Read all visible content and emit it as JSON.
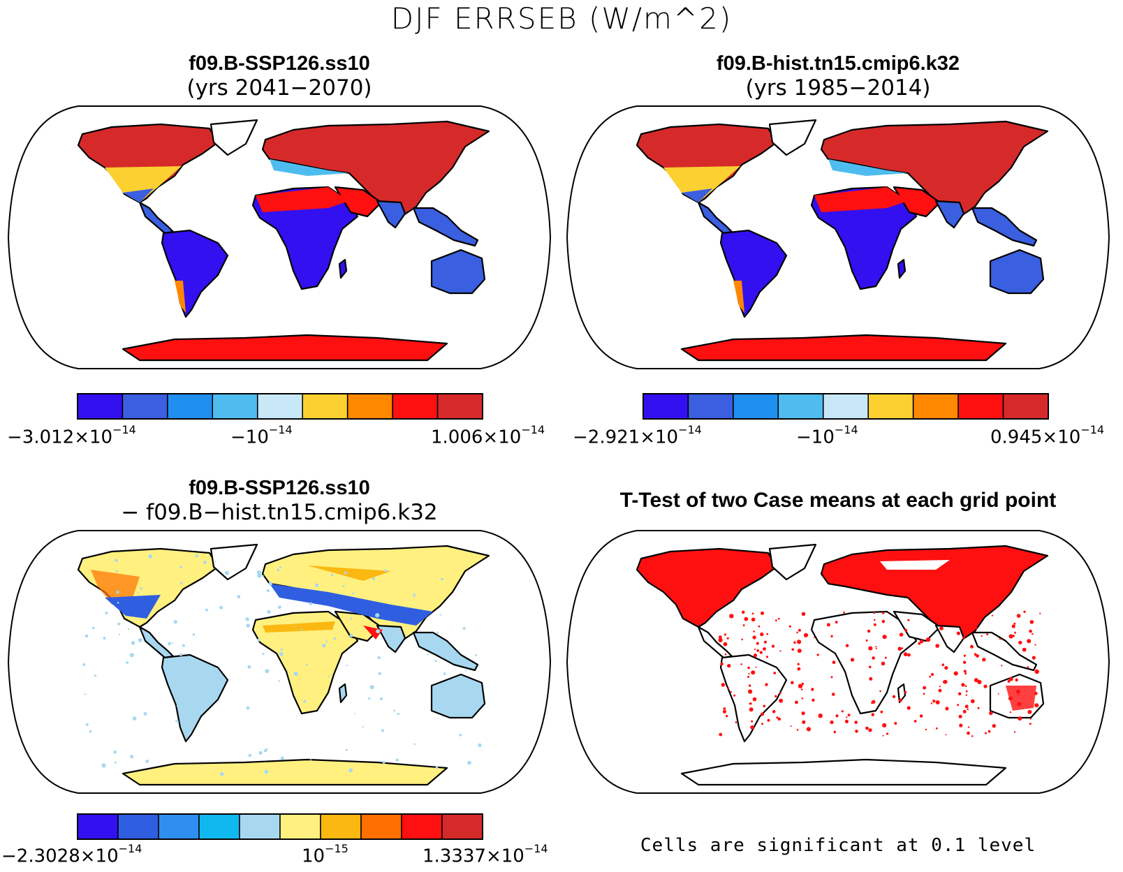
{
  "figure": {
    "title": "DJF ERRSEB (W/m^2)"
  },
  "panels": [
    {
      "id": "case1",
      "title": "f09.B-SSP126.ss10",
      "subtitle": "(yrs 2041−2070)",
      "colorbar": {
        "colors": [
          "#3310f0",
          "#3a5fe0",
          "#1f8ff0",
          "#4fbcf0",
          "#c8e8f8",
          "#fbd030",
          "#ff8800",
          "#ff1010",
          "#d62a2a"
        ],
        "labels": [
          {
            "mantissa": "−3.012×10",
            "exp": "−14"
          },
          {
            "mantissa": "−10",
            "exp": "−14"
          },
          {
            "mantissa": "1.006×10",
            "exp": "−14"
          }
        ]
      }
    },
    {
      "id": "case2",
      "title": "f09.B-hist.tn15.cmip6.k32",
      "subtitle": "(yrs 1985−2014)",
      "colorbar": {
        "colors": [
          "#3310f0",
          "#3a5fe0",
          "#1f8ff0",
          "#4fbcf0",
          "#c8e8f8",
          "#fbd030",
          "#ff8800",
          "#ff1010",
          "#d62a2a"
        ],
        "labels": [
          {
            "mantissa": "−2.921×10",
            "exp": "−14"
          },
          {
            "mantissa": "−10",
            "exp": "−14"
          },
          {
            "mantissa": "0.945×10",
            "exp": "−14"
          }
        ]
      }
    },
    {
      "id": "diff",
      "title": "f09.B-SSP126.ss10",
      "subtitle": "− f09.B−hist.tn15.cmip6.k32",
      "colorbar": {
        "colors": [
          "#3310f0",
          "#2f5fe0",
          "#2f8ff0",
          "#10b8f0",
          "#a8d8f0",
          "#fff080",
          "#fbb810",
          "#ff7000",
          "#ff1010",
          "#d62a2a"
        ],
        "labels": [
          {
            "mantissa": "−2.3028×10",
            "exp": "−14"
          },
          {
            "mantissa": "10",
            "exp": "−15"
          },
          {
            "mantissa": "1.3337×10",
            "exp": "−14"
          }
        ]
      }
    },
    {
      "id": "ttest",
      "title": "T-Test of two Case means at each grid point",
      "note": "Cells are significant at 0.1 level"
    }
  ]
}
